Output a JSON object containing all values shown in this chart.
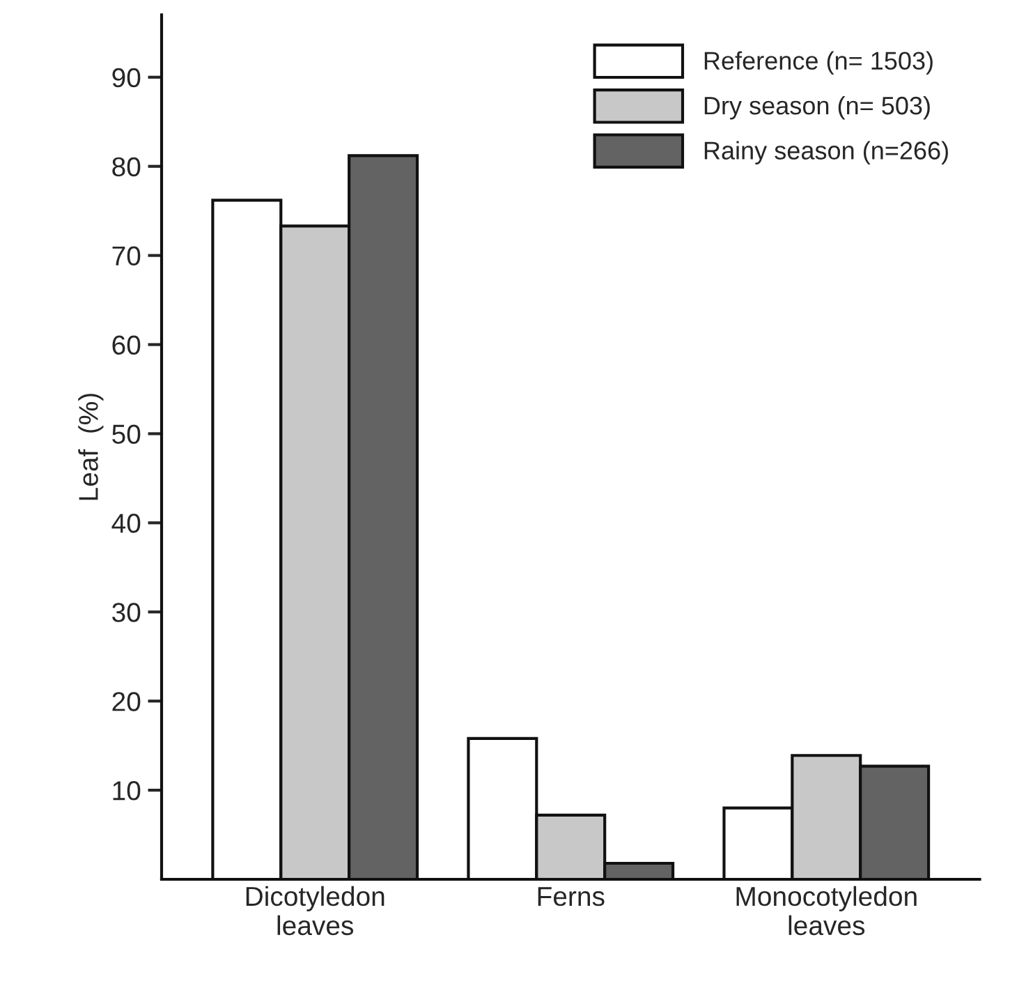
{
  "chart_data": {
    "type": "bar",
    "ylabel": "Leaf  (%)",
    "categories": [
      "Dicotyledon\nleaves",
      "Ferns",
      "Monocotyledon\nleaves"
    ],
    "series": [
      {
        "name": "Reference (n= 1503)",
        "color": "#ffffff",
        "values": [
          76.2,
          15.8,
          8.0
        ]
      },
      {
        "name": "Dry season (n= 503)",
        "color": "#c8c8c8",
        "values": [
          73.3,
          7.2,
          13.9
        ]
      },
      {
        "name": "Rainy season (n=266)",
        "color": "#636363",
        "values": [
          81.2,
          1.8,
          12.7
        ]
      }
    ],
    "ylim": [
      0,
      97
    ],
    "yticks": [
      10,
      20,
      30,
      40,
      50,
      60,
      70,
      80,
      90
    ],
    "grid": false,
    "legend": "top right"
  }
}
